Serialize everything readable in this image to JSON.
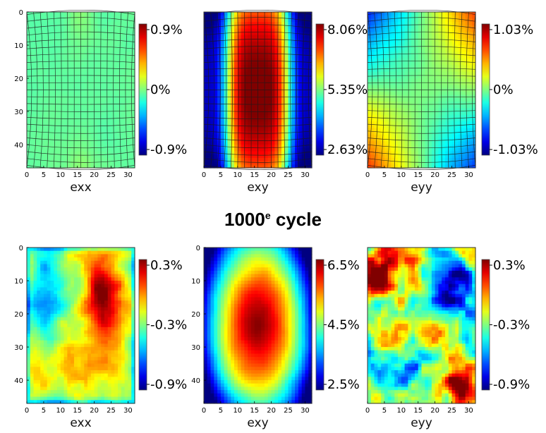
{
  "cycle_heading": {
    "number": "1000",
    "suffix": "e",
    "word": "cycle"
  },
  "chart_data": [
    {
      "type": "heatmap",
      "row": 1,
      "xlabel": "exx",
      "xticks": [
        "0",
        "5",
        "10",
        "15",
        "20",
        "25",
        "30"
      ],
      "yticks": [
        "0",
        "10",
        "20",
        "30",
        "40"
      ],
      "xlim": [
        0,
        32
      ],
      "ylim": [
        47,
        0
      ],
      "colorbar_ticks": [
        "0.9%",
        "0%",
        "-0.9%"
      ],
      "vmin": -0.9,
      "vmax": 0.9,
      "unit": "%",
      "grid": true,
      "field": "exx-uniform"
    },
    {
      "type": "heatmap",
      "row": 1,
      "xlabel": "exy",
      "xticks": [
        "0",
        "5",
        "10",
        "15",
        "20",
        "25",
        "30"
      ],
      "yticks": [],
      "xlim": [
        0,
        32
      ],
      "ylim": [
        47,
        0
      ],
      "colorbar_ticks": [
        "8.06%",
        "5.35%",
        "2.63%"
      ],
      "vmin": 2.63,
      "vmax": 8.06,
      "unit": "%",
      "grid": true,
      "field": "exy-center-band"
    },
    {
      "type": "heatmap",
      "row": 1,
      "xlabel": "eyy",
      "xticks": [
        "0",
        "5",
        "10",
        "15",
        "20",
        "25",
        "30"
      ],
      "yticks": [],
      "xlim": [
        0,
        32
      ],
      "ylim": [
        47,
        0
      ],
      "colorbar_ticks": [
        "1.03%",
        "0%",
        "-1.03%"
      ],
      "vmin": -1.03,
      "vmax": 1.03,
      "unit": "%",
      "grid": true,
      "field": "eyy-quadrants"
    },
    {
      "type": "heatmap",
      "row": 2,
      "xlabel": "exx",
      "xticks": [
        "0",
        "5",
        "10",
        "15",
        "20",
        "25",
        "30"
      ],
      "yticks": [
        "0",
        "10",
        "20",
        "30",
        "40"
      ],
      "xlim": [
        0,
        32
      ],
      "ylim": [
        47,
        0
      ],
      "colorbar_ticks": [
        "0.3%",
        "-0.3%",
        "-0.9%"
      ],
      "vmin": -0.9,
      "vmax": 0.3,
      "unit": "%",
      "grid": false,
      "field": "exx-noisy"
    },
    {
      "type": "heatmap",
      "row": 2,
      "xlabel": "exy",
      "xticks": [
        "0",
        "5",
        "10",
        "15",
        "20",
        "25",
        "30"
      ],
      "yticks": [
        "0",
        "10",
        "20",
        "30",
        "40"
      ],
      "xlim": [
        0,
        32
      ],
      "ylim": [
        47,
        0
      ],
      "colorbar_ticks": [
        "6.5%",
        "4.5%",
        "2.5%"
      ],
      "vmin": 2.5,
      "vmax": 6.5,
      "unit": "%",
      "grid": false,
      "field": "exy-ellipse"
    },
    {
      "type": "heatmap",
      "row": 2,
      "xlabel": "eyy",
      "xticks": [
        "0",
        "5",
        "10",
        "15",
        "20",
        "25",
        "30"
      ],
      "yticks": [],
      "xlim": [
        0,
        32
      ],
      "ylim": [
        47,
        0
      ],
      "colorbar_ticks": [
        "0.3%",
        "-0.3%",
        "-0.9%"
      ],
      "vmin": -0.9,
      "vmax": 0.3,
      "unit": "%",
      "grid": false,
      "field": "eyy-patchy"
    }
  ]
}
